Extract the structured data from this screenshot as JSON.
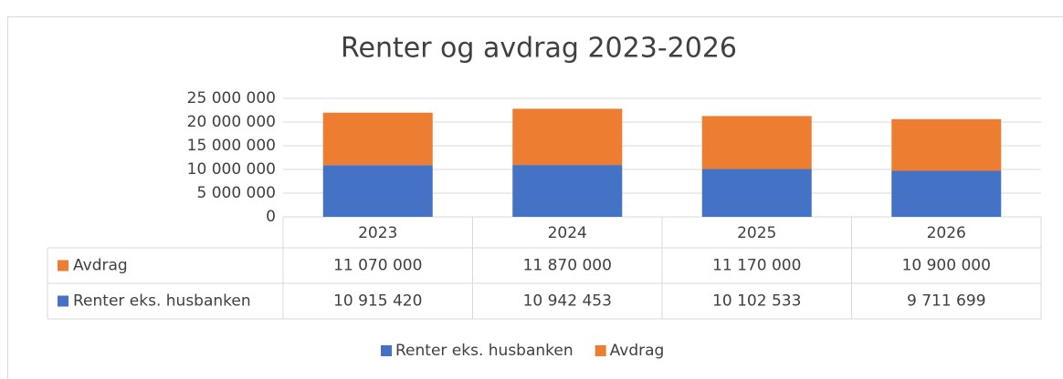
{
  "chart_data": {
    "type": "bar",
    "stacked": true,
    "title": "Renter og avdrag 2023-2026",
    "categories": [
      "2023",
      "2024",
      "2025",
      "2026"
    ],
    "series": [
      {
        "name": "Renter eks. husbanken",
        "color": "#4472c4",
        "values": [
          10915420,
          10942453,
          10102533,
          9711699
        ],
        "value_labels": [
          "10 915 420",
          "10 942 453",
          "10 102 533",
          "9 711 699"
        ]
      },
      {
        "name": "Avdrag",
        "color": "#ed7d31",
        "values": [
          11070000,
          11870000,
          11170000,
          10900000
        ],
        "value_labels": [
          "11 070 000",
          "11 870 000",
          "11 170 000",
          "10 900 000"
        ]
      }
    ],
    "ylim": [
      0,
      25000000
    ],
    "yticks": [
      0,
      {
        "value": 5000000,
        "label": "5 000 000"
      },
      {
        "value": 10000000,
        "label": "10 000 000"
      },
      {
        "value": 15000000,
        "label": "15 000 000"
      },
      {
        "value": 20000000,
        "label": "20 000 000"
      },
      {
        "value": 25000000,
        "label": "25 000 000"
      }
    ],
    "grid": true,
    "legend": "bottom",
    "data_table": true
  }
}
